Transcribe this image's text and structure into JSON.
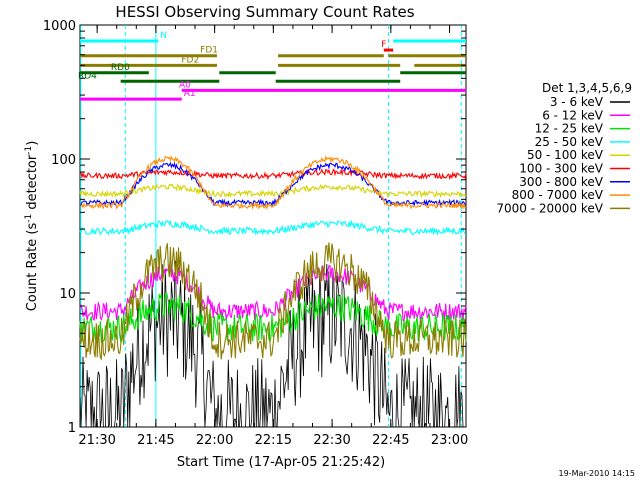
{
  "chart_data": {
    "type": "line",
    "title": "HESSI Observing Summary Count Rates",
    "xlabel": "Start Time (17-Apr-05 21:25:42)",
    "ylabel_main": "Count Rate (s",
    "ylabel_sup": "-1",
    "ylabel_mid": " detector",
    "ylabel_end": ")",
    "yscale": "log",
    "ylim": [
      1,
      1000
    ],
    "xlim_minutes": [
      21.427,
      23.07
    ],
    "xticks": [
      "21:30",
      "21:45",
      "22:00",
      "22:15",
      "22:30",
      "22:45",
      "23:00"
    ],
    "xtick_values_hours": [
      21.5,
      21.75,
      22.0,
      22.25,
      22.5,
      22.75,
      23.0
    ],
    "yticks": [
      "1",
      "10",
      "100",
      "1000"
    ],
    "ytick_values": [
      1,
      10,
      100,
      1000
    ],
    "timestamp": "19-Mar-2010 14:15",
    "legend_title": "Det 1,3,4,5,6,9",
    "legend_position": "right",
    "series": [
      {
        "name": "3 - 6 keV",
        "color": "#000000",
        "night": 1.2,
        "day": 6.5
      },
      {
        "name": "6 - 12 keV",
        "color": "#ff00ff",
        "night": 7.3,
        "day": 14
      },
      {
        "name": "12 - 25 keV",
        "color": "#00e000",
        "night": 5.5,
        "day": 8
      },
      {
        "name": "25 - 50 keV",
        "color": "#00ffff",
        "night": 29,
        "day": 33
      },
      {
        "name": "50 - 100 keV",
        "color": "#d4d400",
        "night": 55,
        "day": 62
      },
      {
        "name": "100 - 300 keV",
        "color": "#ff0000",
        "night": 75,
        "day": 80
      },
      {
        "name": "300 - 800 keV",
        "color": "#0000ff",
        "night": 47,
        "day": 90
      },
      {
        "name": "800 - 7000 keV",
        "color": "#ff8c00",
        "night": 45,
        "day": 100
      },
      {
        "name": "7000 - 20000 keV",
        "color": "#8b7d00",
        "night": 4.5,
        "day": 17
      }
    ],
    "flags": [
      {
        "label": "N",
        "color": "#00ffff",
        "level": 760,
        "segments": [
          [
            21.427,
            21.76
          ],
          [
            22.76,
            23.07
          ]
        ],
        "label_at": 21.76
      },
      {
        "label": "F",
        "color": "#ff0000",
        "level": 650,
        "segments": [
          [
            22.72,
            22.76
          ]
        ],
        "label_at": 22.7
      },
      {
        "label": "FD1",
        "color": "#8b7d00",
        "level": 590,
        "segments": [
          [
            21.427,
            22.01
          ],
          [
            22.27,
            22.72
          ],
          [
            22.74,
            23.07
          ]
        ],
        "label_at": 21.93
      },
      {
        "label": "FD2",
        "color": "#8b7d00",
        "level": 500,
        "segments": [
          [
            21.427,
            22.01
          ],
          [
            22.27,
            22.79
          ],
          [
            22.85,
            23.07
          ]
        ],
        "label_at": 21.85
      },
      {
        "label": "RD0",
        "color": "#006400",
        "level": 440,
        "segments": [
          [
            21.427,
            21.72
          ],
          [
            22.02,
            22.26
          ],
          [
            22.79,
            23.07
          ]
        ],
        "label_at": 21.55
      },
      {
        "label": "RD4",
        "color": "#006400",
        "level": 380,
        "segments": [
          [
            21.6,
            22.02
          ],
          [
            22.26,
            22.79
          ]
        ],
        "label_at": 21.41
      },
      {
        "label": "A0",
        "color": "#ff00ff",
        "level": 325,
        "segments": [
          [
            21.86,
            23.07
          ]
        ],
        "label_at": 21.84
      },
      {
        "label": "A1",
        "color": "#ff00ff",
        "level": 280,
        "segments": [
          [
            21.427,
            21.86
          ]
        ],
        "label_at": 21.86
      }
    ],
    "saa_boundaries_hours": [
      21.43,
      21.62,
      21.75,
      22.74,
      23.05
    ],
    "daylight_intervals_hours": [
      [
        21.6,
        22.0
      ],
      [
        22.25,
        22.74
      ]
    ]
  }
}
